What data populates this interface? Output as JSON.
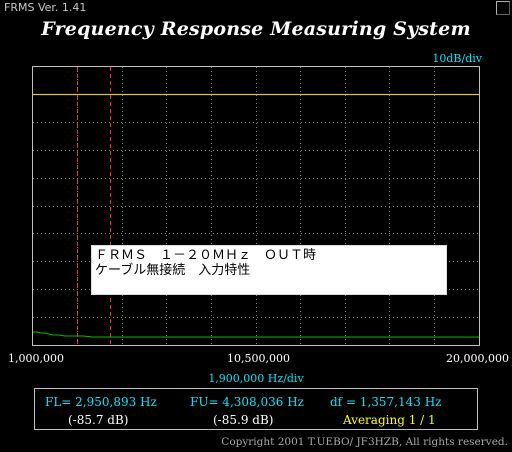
{
  "window": {
    "title": "FRMS  Ver. 1.41"
  },
  "header": {
    "title": "Frequency Response Measuring System"
  },
  "plot": {
    "scale_label": "10dB/div",
    "note_line1": "ＦＲＭＳ　１－２０ＭＨｚ　ＯＵＴ時",
    "note_line2": "ケーブル無接続　入力特性"
  },
  "x_axis": {
    "tick_left": "1,000,000",
    "tick_mid": "10,500,000",
    "tick_right": "20,000,000",
    "division": "1,900,000  Hz/div"
  },
  "readout": {
    "fl": "FL= 2,950,893  Hz",
    "fl_db": "(-85.7 dB)",
    "fu": "FU= 4,308,036  Hz",
    "fu_db": "(-85.9 dB)",
    "df": "df = 1,357,143  Hz",
    "averaging": "Averaging   1 / 1"
  },
  "footer": {
    "copyright": "Copyright 2001 T.UEBO/ JF3HZB, All rights reserved."
  },
  "colors": {
    "reference_line": "#e0c040",
    "trace": "#00c000",
    "marker": "#ff3030",
    "accent": "#00e5ff"
  }
}
